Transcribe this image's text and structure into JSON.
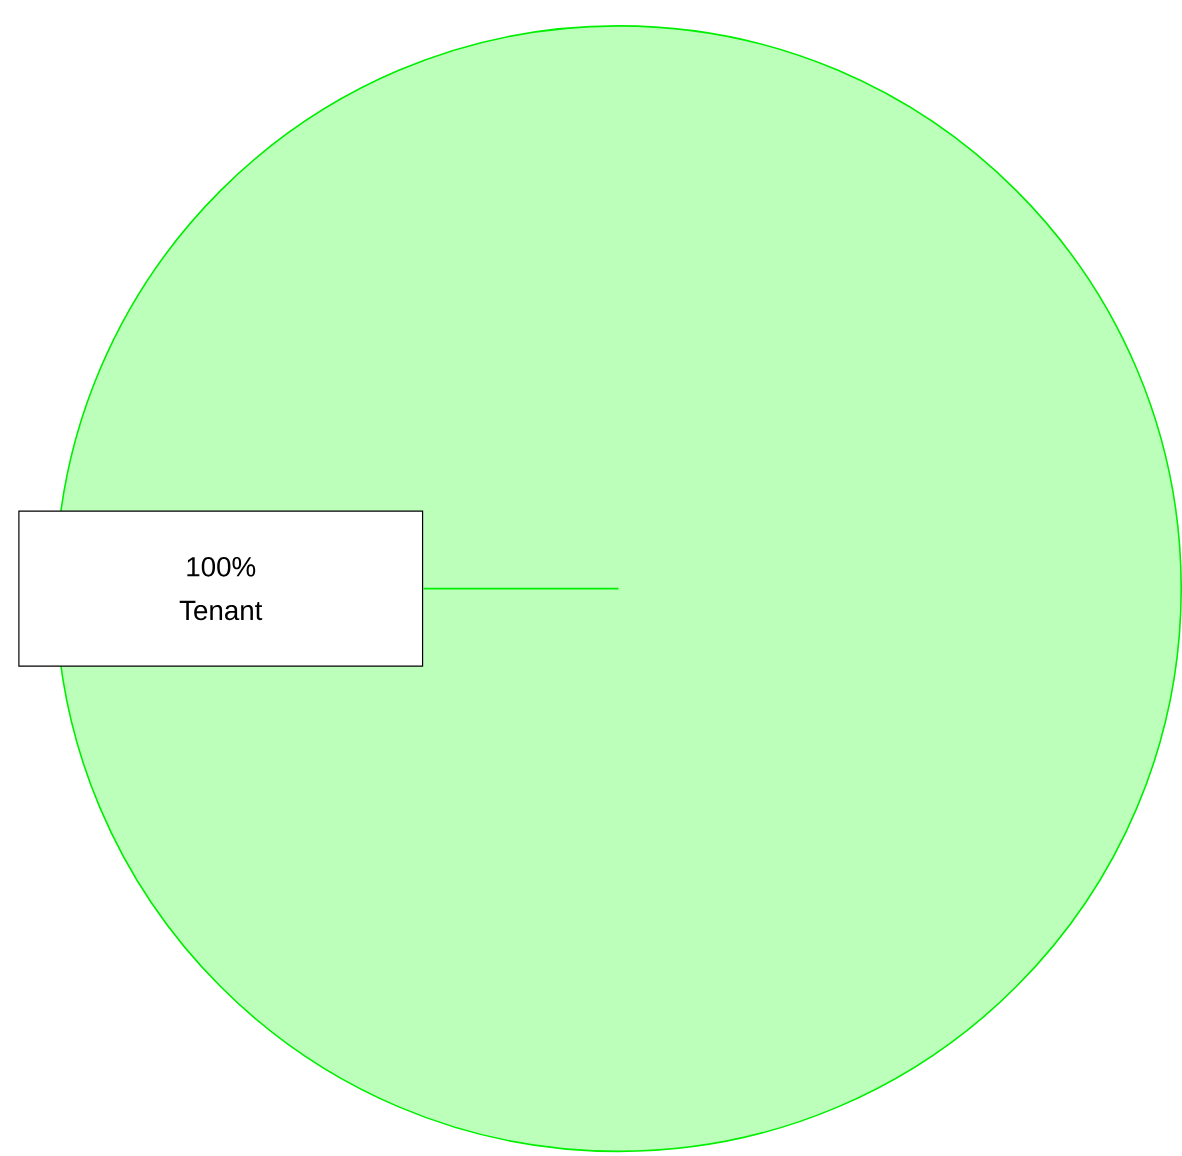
{
  "chart_data": {
    "type": "pie",
    "categories": [
      "Tenant"
    ],
    "values": [
      100
    ],
    "colors": [
      "#bbffbb"
    ],
    "value_labels": [
      "100%"
    ]
  }
}
